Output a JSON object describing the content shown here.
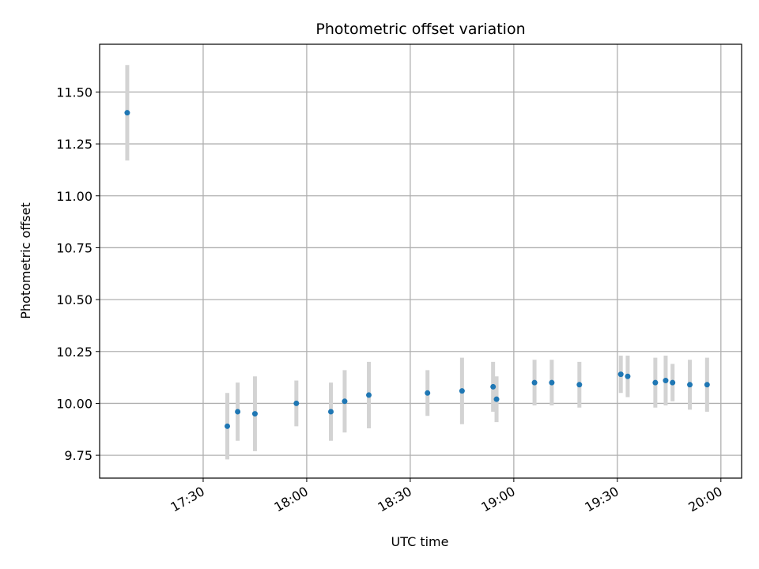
{
  "chart_data": {
    "type": "scatter",
    "title": "Photometric offset variation",
    "xlabel": "UTC time",
    "ylabel": "Photometric offset",
    "x_tick_labels": [
      "17:30",
      "18:00",
      "18:30",
      "19:00",
      "19:30",
      "20:00"
    ],
    "x_ticks_minutes": [
      1050,
      1080,
      1110,
      1140,
      1170,
      1200
    ],
    "y_tick_labels": [
      "9.75",
      "10.00",
      "10.25",
      "10.50",
      "10.75",
      "11.00",
      "11.25",
      "11.50"
    ],
    "y_ticks": [
      9.75,
      10.0,
      10.25,
      10.5,
      10.75,
      11.0,
      11.25,
      11.5
    ],
    "xlim": [
      "17:00",
      "20:06"
    ],
    "ylim": [
      9.64,
      11.73
    ],
    "grid": true,
    "colors": {
      "point": "#1f77b4",
      "errorbar": "#d3d3d3",
      "grid": "#b0b0b0"
    },
    "series": [
      {
        "points": [
          {
            "x": "17:08",
            "y": 11.4,
            "err": 0.23
          },
          {
            "x": "17:37",
            "y": 9.89,
            "err": 0.16
          },
          {
            "x": "17:40",
            "y": 9.96,
            "err": 0.14
          },
          {
            "x": "17:45",
            "y": 9.95,
            "err": 0.18
          },
          {
            "x": "17:57",
            "y": 10.0,
            "err": 0.11
          },
          {
            "x": "18:07",
            "y": 9.96,
            "err": 0.14
          },
          {
            "x": "18:11",
            "y": 10.01,
            "err": 0.15
          },
          {
            "x": "18:18",
            "y": 10.04,
            "err": 0.16
          },
          {
            "x": "18:35",
            "y": 10.05,
            "err": 0.11
          },
          {
            "x": "18:45",
            "y": 10.06,
            "err": 0.16
          },
          {
            "x": "18:54",
            "y": 10.08,
            "err": 0.12
          },
          {
            "x": "18:55",
            "y": 10.02,
            "err": 0.11
          },
          {
            "x": "19:06",
            "y": 10.1,
            "err": 0.11
          },
          {
            "x": "19:11",
            "y": 10.1,
            "err": 0.11
          },
          {
            "x": "19:19",
            "y": 10.09,
            "err": 0.11
          },
          {
            "x": "19:31",
            "y": 10.14,
            "err": 0.09
          },
          {
            "x": "19:33",
            "y": 10.13,
            "err": 0.1
          },
          {
            "x": "19:41",
            "y": 10.1,
            "err": 0.12
          },
          {
            "x": "19:44",
            "y": 10.11,
            "err": 0.12
          },
          {
            "x": "19:46",
            "y": 10.1,
            "err": 0.09
          },
          {
            "x": "19:51",
            "y": 10.09,
            "err": 0.12
          },
          {
            "x": "19:56",
            "y": 10.09,
            "err": 0.13
          }
        ]
      }
    ]
  }
}
